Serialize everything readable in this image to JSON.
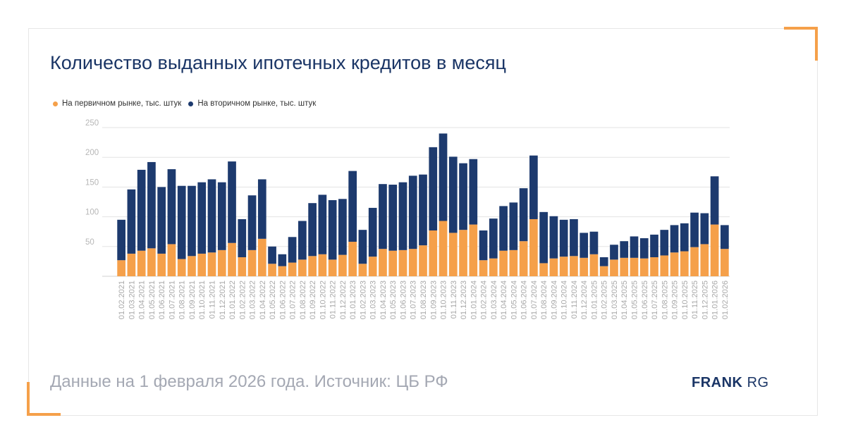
{
  "title": "Количество выданных ипотечных кредитов в месяц",
  "footer": "Данные на 1 февраля 2026 года. Источник: ЦБ РФ",
  "brand": {
    "bold": "FRANK",
    "light": "RG"
  },
  "colors": {
    "primary": "#f5a04a",
    "secondary": "#1d3a6e",
    "accent_corner": "#f5a04a",
    "title": "#1a3566"
  },
  "chart_data": {
    "type": "bar",
    "stacked": true,
    "categories": [
      "01.02.2021",
      "01.03.2021",
      "01.04.2021",
      "01.05.2021",
      "01.06.2021",
      "01.07.2021",
      "01.08.2021",
      "01.09.2021",
      "01.10.2021",
      "01.11.2021",
      "01.12.2021",
      "01.01.2022",
      "01.02.2022",
      "01.03.2022",
      "01.04.2022",
      "01.05.2022",
      "01.06.2022",
      "01.07.2022",
      "01.08.2022",
      "01.09.2022",
      "01.10.2022",
      "01.11.2022",
      "01.12.2022",
      "01.01.2023",
      "01.02.2023",
      "01.03.2023",
      "01.04.2023",
      "01.05.2023",
      "01.06.2023",
      "01.07.2023",
      "01.08.2023",
      "01.09.2023",
      "01.10.2023",
      "01.11.2023",
      "01.12.2023",
      "01.01.2024",
      "01.02.2024",
      "01.03.2024",
      "01.04.2024",
      "01.05.2024",
      "01.06.2024",
      "01.07.2024",
      "01.08.2024",
      "01.09.2024",
      "01.10.2024",
      "01.11.2024",
      "01.12.2024",
      "01.01.2025",
      "01.02.2025",
      "01.03.2025",
      "01.04.2025",
      "01.05.2025",
      "01.06.2025",
      "01.07.2025",
      "01.08.2025",
      "01.09.2025",
      "01.10.2025",
      "01.11.2025",
      "01.12.2025",
      "01.01.2026",
      "01.02.2026"
    ],
    "series": [
      {
        "name": "На первичном рынке, тыс. штук",
        "color": "#f5a04a",
        "values": [
          27,
          38,
          43,
          47,
          38,
          54,
          29,
          34,
          38,
          40,
          44,
          56,
          32,
          44,
          63,
          21,
          17,
          23,
          28,
          34,
          37,
          28,
          36,
          58,
          21,
          33,
          46,
          43,
          44,
          46,
          52,
          77,
          93,
          73,
          78,
          87,
          27,
          30,
          43,
          44,
          59,
          96,
          22,
          30,
          33,
          34,
          31,
          37,
          17,
          28,
          31,
          31,
          30,
          32,
          35,
          40,
          42,
          49,
          54,
          87,
          46
        ]
      },
      {
        "name": "На вторичном рынке, тыс. штук",
        "color": "#1d3a6e",
        "values": [
          68,
          108,
          136,
          145,
          112,
          126,
          123,
          118,
          120,
          123,
          114,
          137,
          64,
          92,
          100,
          29,
          20,
          43,
          65,
          89,
          100,
          100,
          94,
          119,
          57,
          82,
          109,
          111,
          114,
          123,
          119,
          140,
          147,
          128,
          112,
          110,
          50,
          67,
          75,
          80,
          89,
          107,
          86,
          71,
          62,
          62,
          42,
          38,
          15,
          25,
          28,
          36,
          34,
          38,
          43,
          46,
          47,
          58,
          52,
          81,
          40
        ]
      }
    ],
    "ylim": [
      0,
      250
    ],
    "yticks": [
      50,
      100,
      150,
      200,
      250
    ],
    "grid": true,
    "legend": "top-left"
  }
}
